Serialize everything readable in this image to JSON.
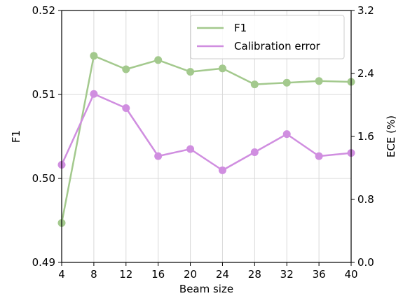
{
  "chart_data": {
    "type": "line",
    "xlabel": "Beam size",
    "ylabel_left": "F1",
    "ylabel_right": "ECE (%)",
    "x": [
      4,
      8,
      12,
      16,
      20,
      24,
      28,
      32,
      36,
      40
    ],
    "xlim": [
      4,
      40
    ],
    "xticks": [
      "4",
      "8",
      "12",
      "16",
      "20",
      "24",
      "28",
      "32",
      "36",
      "40"
    ],
    "ylim_left": [
      0.49,
      0.52
    ],
    "yticks_left": [
      "0.49",
      "0.50",
      "0.51",
      "0.52"
    ],
    "ylim_right": [
      0.0,
      3.2
    ],
    "yticks_right": [
      "0.0",
      "0.8",
      "1.6",
      "2.4",
      "3.2"
    ],
    "grid": true,
    "legend_position": "top-right",
    "series": [
      {
        "name": "F1",
        "axis": "left",
        "color": "#a3c98d",
        "values": [
          0.4947,
          0.5146,
          0.513,
          0.5141,
          0.5127,
          0.5131,
          0.5112,
          0.5114,
          0.5116,
          0.5115
        ]
      },
      {
        "name": "Calibration error",
        "axis": "right",
        "color": "#d08ee0",
        "values": [
          1.24,
          2.14,
          1.96,
          1.35,
          1.44,
          1.17,
          1.4,
          1.63,
          1.35,
          1.39
        ]
      }
    ]
  }
}
